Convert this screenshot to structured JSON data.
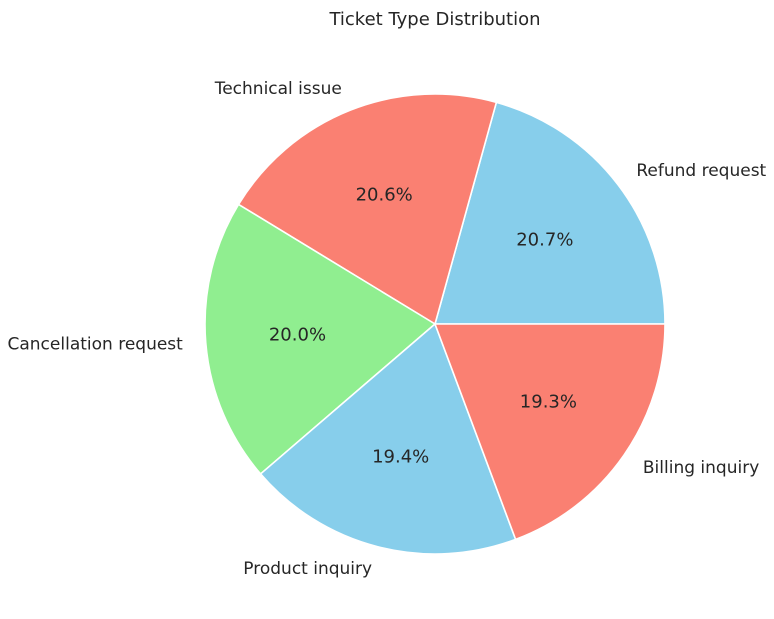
{
  "chart_data": {
    "type": "pie",
    "title": "Ticket Type Distribution",
    "categories": [
      "Refund request",
      "Technical issue",
      "Cancellation request",
      "Product inquiry",
      "Billing inquiry"
    ],
    "values": [
      20.7,
      20.6,
      20.0,
      19.4,
      19.3
    ],
    "value_labels": [
      "20.7%",
      "20.6%",
      "20.0%",
      "19.4%",
      "19.3%"
    ],
    "colors": [
      "#87CEEB",
      "#FA8072",
      "#90EE90",
      "#87CEEB",
      "#FA8072"
    ],
    "start_angle_deg": 0,
    "direction": "counterclockwise",
    "legend": "none"
  }
}
